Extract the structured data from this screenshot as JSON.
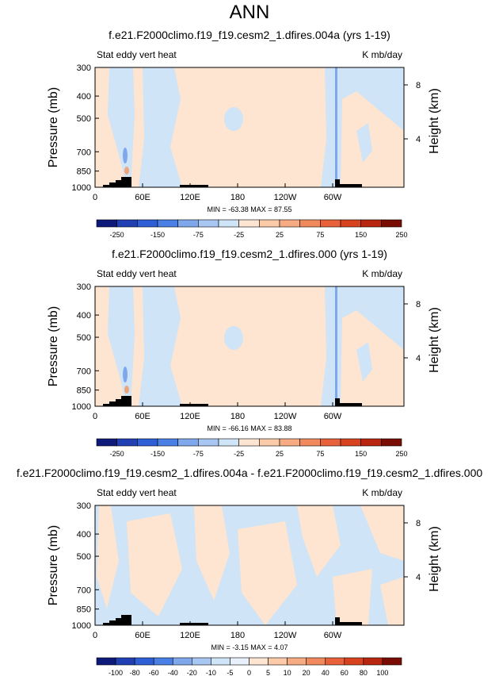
{
  "main_title": "ANN",
  "colors": {
    "neg_light": "#cfe4f7",
    "pos_light": "#fde5d1",
    "neg_mid": "#7fa8ec",
    "pos_mid": "#f0a47a",
    "topography": "#000000"
  },
  "chart_data": [
    {
      "type": "heatmap",
      "title": "f.e21.F2000climo.f19_f19.cesm2_1.dfires.004a (yrs 1-19)",
      "left_label": "Stat eddy vert heat",
      "right_label": "K mb/day",
      "ylabel": "Pressure (mb)",
      "ylabel_right": "Height (km)",
      "xticks": [
        "0",
        "60E",
        "120E",
        "180",
        "120W",
        "60W"
      ],
      "yticks": [
        "300",
        "400",
        "500",
        "700",
        "850",
        "1000"
      ],
      "yticks_right": [
        "8",
        "4"
      ],
      "stats": "MIN = -63.38   MAX = 87.55",
      "colorbar_labels": [
        "-250",
        "-150",
        "-75",
        "-25",
        "25",
        "75",
        "150",
        "250"
      ],
      "colorbar_colors": [
        "#0d1a7a",
        "#1f3fb3",
        "#2e5fd6",
        "#4a7fe6",
        "#7fa8ec",
        "#a8c6f2",
        "#cfe4f7",
        "#fde5d1",
        "#fbcba9",
        "#f6ab82",
        "#f08a5c",
        "#e8613a",
        "#d8431f",
        "#b8260f",
        "#7a0d03"
      ]
    },
    {
      "type": "heatmap",
      "title": "f.e21.F2000climo.f19_f19.cesm2_1.dfires.000 (yrs 1-19)",
      "left_label": "Stat eddy vert heat",
      "right_label": "K mb/day",
      "ylabel": "Pressure (mb)",
      "ylabel_right": "Height (km)",
      "xticks": [
        "0",
        "60E",
        "120E",
        "180",
        "120W",
        "60W"
      ],
      "yticks": [
        "300",
        "400",
        "500",
        "700",
        "850",
        "1000"
      ],
      "yticks_right": [
        "8",
        "4"
      ],
      "stats": "MIN = -66.16   MAX = 83.88",
      "colorbar_labels": [
        "-250",
        "-150",
        "-75",
        "-25",
        "25",
        "75",
        "150",
        "250"
      ],
      "colorbar_colors": [
        "#0d1a7a",
        "#1f3fb3",
        "#2e5fd6",
        "#4a7fe6",
        "#7fa8ec",
        "#a8c6f2",
        "#cfe4f7",
        "#fde5d1",
        "#fbcba9",
        "#f6ab82",
        "#f08a5c",
        "#e8613a",
        "#d8431f",
        "#b8260f",
        "#7a0d03"
      ]
    },
    {
      "type": "heatmap",
      "title": "f.e21.F2000climo.f19_f19.cesm2_1.dfires.004a - f.e21.F2000climo.f19_f19.cesm2_1.dfires.000",
      "left_label": "Stat eddy vert heat",
      "right_label": "K mb/day",
      "ylabel": "Pressure (mb)",
      "ylabel_right": "Height (km)",
      "xticks": [
        "0",
        "60E",
        "120E",
        "180",
        "120W",
        "60W"
      ],
      "yticks": [
        "300",
        "400",
        "500",
        "700",
        "850",
        "1000"
      ],
      "yticks_right": [
        "8",
        "4"
      ],
      "stats": "MIN = -3.15   MAX = 4.07",
      "colorbar_labels": [
        "-100",
        "-80",
        "-60",
        "-40",
        "-20",
        "-10",
        "-5",
        "0",
        "5",
        "10",
        "20",
        "40",
        "60",
        "80",
        "100"
      ],
      "colorbar_colors": [
        "#0d1a7a",
        "#1f3fb3",
        "#2e5fd6",
        "#4a7fe6",
        "#7fa8ec",
        "#a8c6f2",
        "#cfe4f7",
        "#e8f1fb",
        "#fde5d1",
        "#fbcba9",
        "#f6ab82",
        "#f08a5c",
        "#e8613a",
        "#d8431f",
        "#b8260f",
        "#7a0d03"
      ]
    }
  ]
}
